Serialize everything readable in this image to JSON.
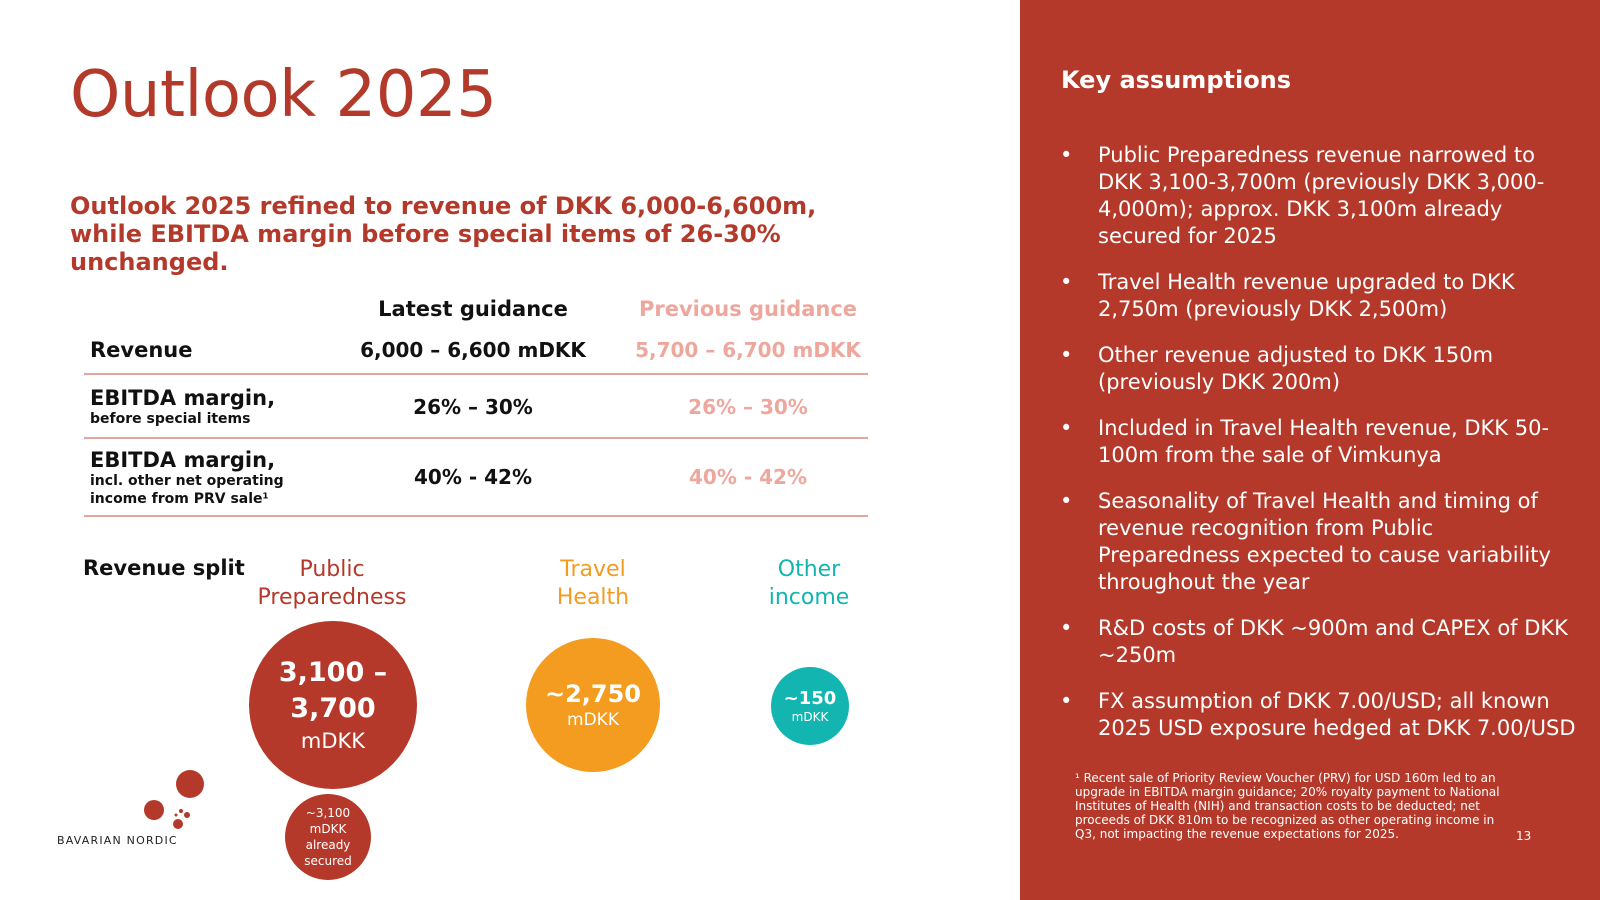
{
  "title": "Outlook 2025",
  "subtitle": "Outlook 2025 refined to revenue of DKK 6,000-6,600m, while EBITDA margin before special items of 26-30% unchanged.",
  "guidance_table": {
    "headers": {
      "latest": "Latest guidance",
      "previous": "Previous guidance"
    },
    "rows": [
      {
        "label": "Revenue",
        "sublabel": "",
        "latest": "6,000 – 6,600 mDKK",
        "previous": "5,700 – 6,700 mDKK"
      },
      {
        "label": "EBITDA margin,",
        "sublabel": "before special items",
        "latest": "26% – 30%",
        "previous": "26% – 30%"
      },
      {
        "label": "EBITDA margin,",
        "sublabel_line1": "incl. other net operating",
        "sublabel_line2": "income from PRV sale¹",
        "latest": "40% - 42%",
        "previous": "40% - 42%"
      }
    ]
  },
  "revenue_split": {
    "label": "Revenue split",
    "categories": [
      {
        "name_line1": "Public",
        "name_line2": "Preparedness",
        "value_line1": "3,100 –",
        "value_line2": "3,700",
        "unit": "mDKK",
        "color": "#b5392a"
      },
      {
        "name_line1": "Travel",
        "name_line2": "Health",
        "value_line1": "~2,750",
        "unit": "mDKK",
        "color": "#f39c1f"
      },
      {
        "name_line1": "Other",
        "name_line2": "income",
        "value_line1": "~150",
        "unit": "mDKK",
        "color": "#12b5b0"
      }
    ],
    "secured": {
      "line1": "~3,100",
      "line2": "mDKK",
      "line3": "already",
      "line4": "secured"
    }
  },
  "key_assumptions": {
    "title": "Key assumptions",
    "bullet_char": "•",
    "items": [
      "Public Preparedness revenue narrowed to DKK 3,100-3,700m (previously DKK 3,000-4,000m); approx. DKK 3,100m already secured for 2025",
      "Travel Health revenue upgraded to DKK 2,750m (previously DKK 2,500m)",
      "Other revenue adjusted to DKK 150m (previously DKK 200m)",
      "Included in Travel Health revenue, DKK 50-100m from the sale of Vimkunya",
      "Seasonality of Travel Health and timing of revenue recognition from Public Preparedness expected to cause variability throughout the year",
      "R&D costs of DKK ~900m and CAPEX of DKK ~250m",
      "FX assumption of DKK 7.00/USD; all known 2025 USD exposure hedged at DKK 7.00/USD"
    ]
  },
  "footnote": "¹ Recent sale of Priority Review Voucher (PRV) for USD 160m led to an upgrade in EBITDA margin guidance; 20% royalty payment to National Institutes of Health (NIH) and transaction costs to be deducted; net proceeds of DKK 810m to be recognized as other operating income in Q3, not impacting the revenue expectations for 2025.",
  "page_number": "13",
  "logo": {
    "text": "BAVARIAN NORDIC"
  },
  "colors": {
    "brand_red": "#b5392a",
    "title_red": "#b33a2a",
    "prev_pink": "#eda79d",
    "travel_orange": "#f39c1f",
    "other_teal": "#12b5b0"
  }
}
